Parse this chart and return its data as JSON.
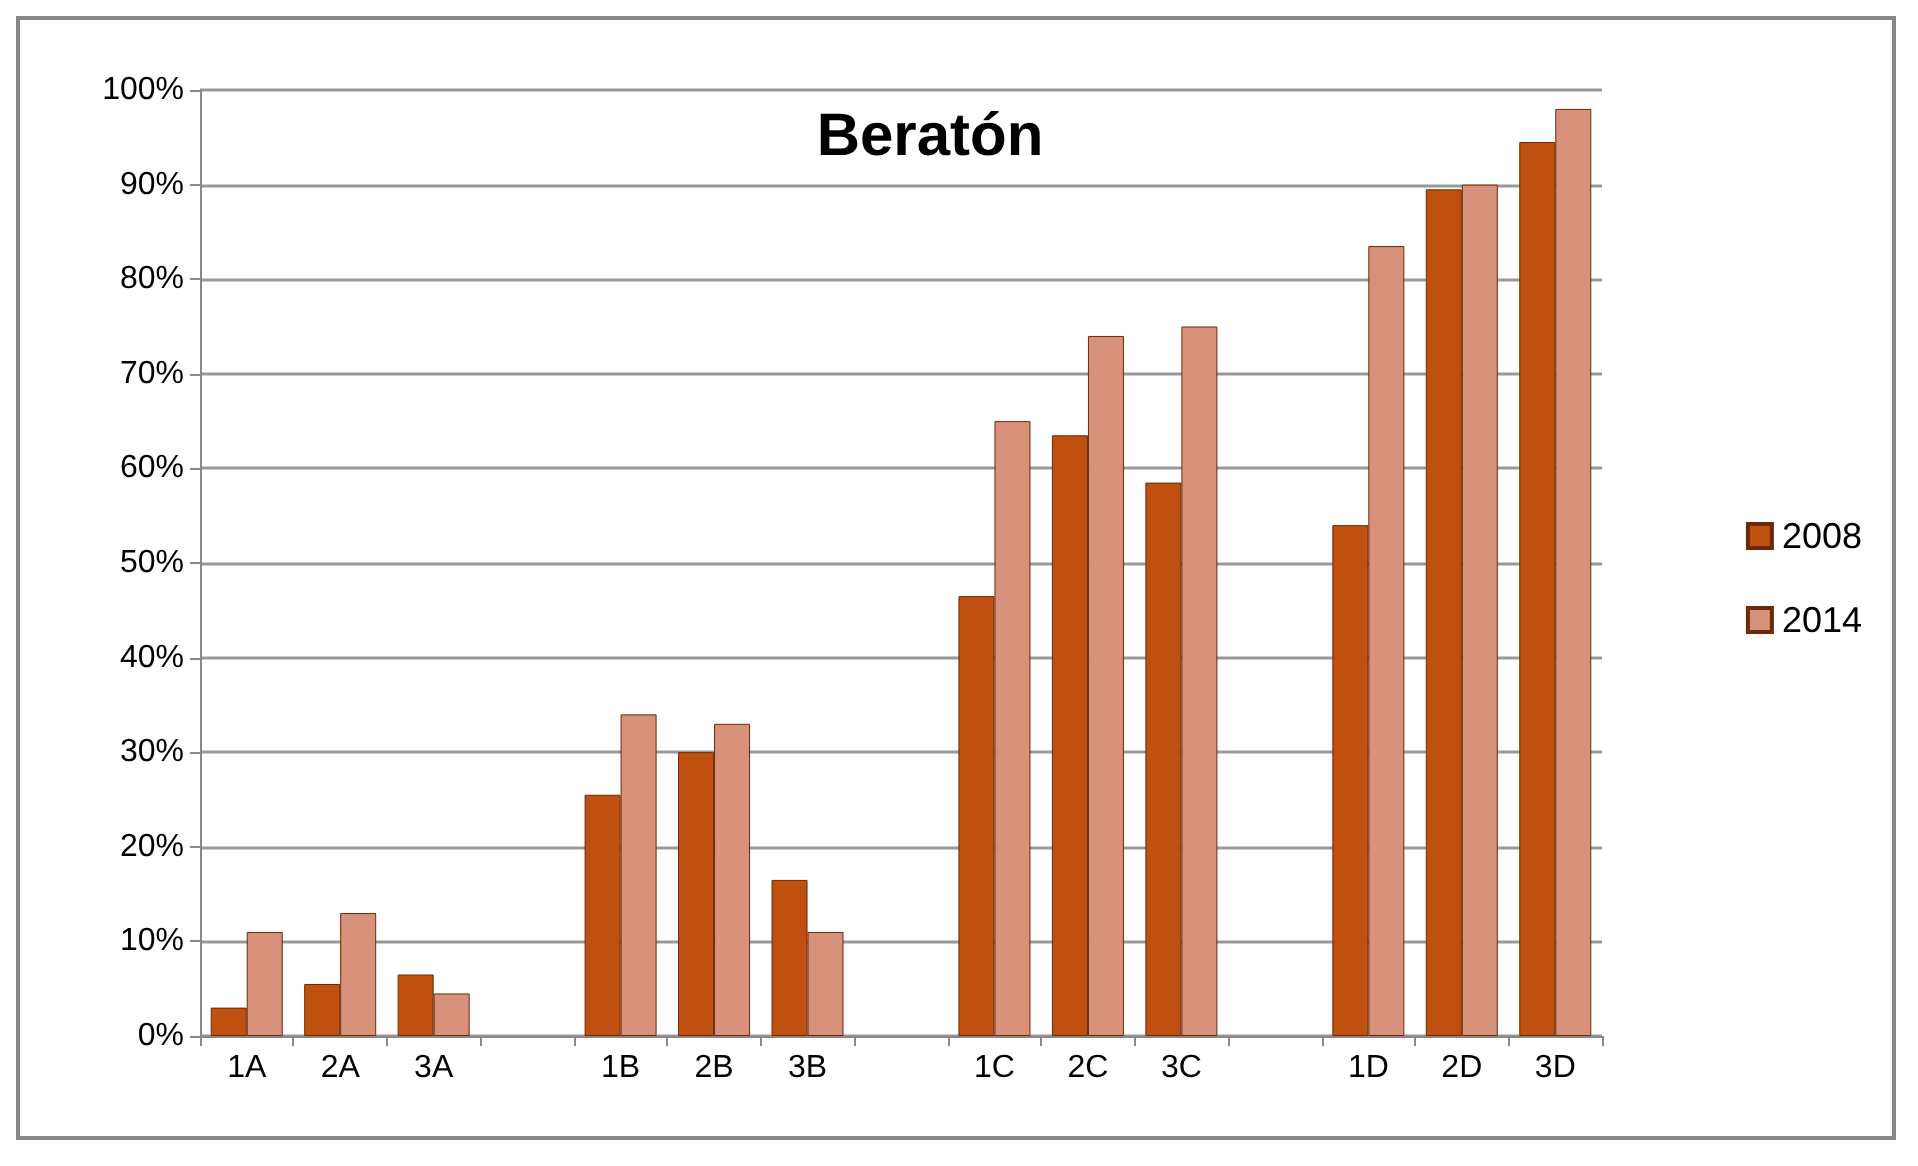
{
  "chart_data": {
    "type": "bar",
    "title": "Beratón",
    "categories": [
      "1A",
      "2A",
      "3A",
      null,
      "1B",
      "2B",
      "3B",
      null,
      "1C",
      "2C",
      "3C",
      null,
      "1D",
      "2D",
      "3D"
    ],
    "series": [
      {
        "name": "2008",
        "color": "#c0500f",
        "values": [
          3,
          5.5,
          6.5,
          null,
          25.5,
          30,
          16.5,
          null,
          46.5,
          63.5,
          58.5,
          null,
          54,
          89.5,
          94.5
        ]
      },
      {
        "name": "2014",
        "color": "#d8917a",
        "values": [
          11,
          13,
          4.5,
          null,
          34,
          33,
          11,
          null,
          65,
          74,
          75,
          null,
          83.5,
          90,
          98
        ]
      }
    ],
    "ylim": [
      0,
      100
    ],
    "yticks": [
      {
        "value": 0,
        "label": "0%"
      },
      {
        "value": 10,
        "label": "10%"
      },
      {
        "value": 20,
        "label": "20%"
      },
      {
        "value": 30,
        "label": "30%"
      },
      {
        "value": 40,
        "label": "40%"
      },
      {
        "value": 50,
        "label": "50%"
      },
      {
        "value": 60,
        "label": "60%"
      },
      {
        "value": 70,
        "label": "70%"
      },
      {
        "value": 80,
        "label": "80%"
      },
      {
        "value": 90,
        "label": "90%"
      },
      {
        "value": 100,
        "label": "100%"
      }
    ],
    "grid": "y",
    "legend": "right"
  }
}
